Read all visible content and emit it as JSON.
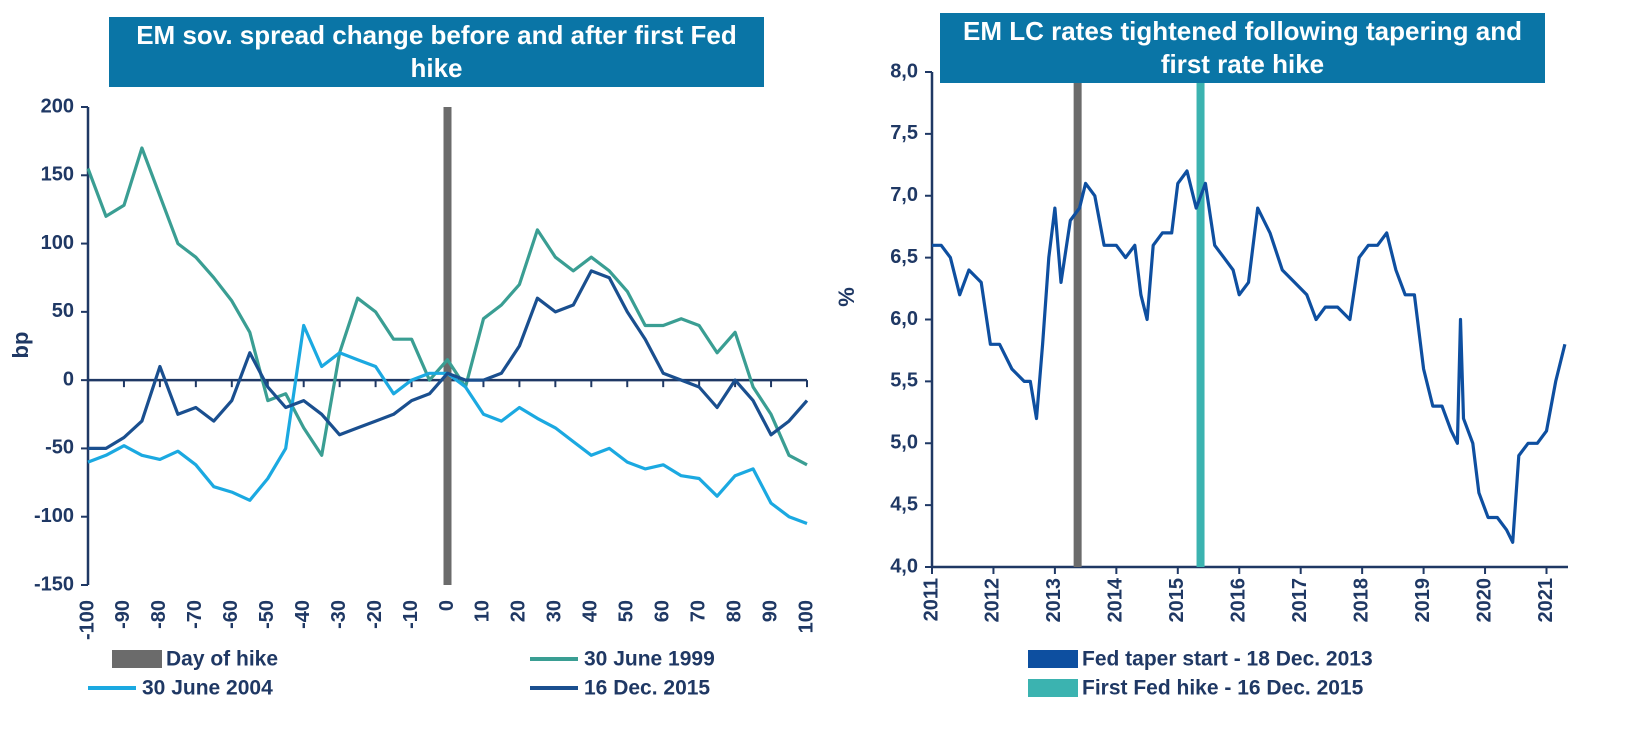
{
  "chart_data": [
    {
      "type": "line",
      "title": "EM sov. spread change before and after first Fed hike",
      "ylabel": "bp",
      "x": [
        -100,
        -95,
        -90,
        -85,
        -80,
        -75,
        -70,
        -65,
        -60,
        -55,
        -50,
        -45,
        -40,
        -35,
        -30,
        -25,
        -20,
        -15,
        -10,
        -5,
        0,
        5,
        10,
        15,
        20,
        25,
        30,
        35,
        40,
        45,
        50,
        55,
        60,
        65,
        70,
        75,
        80,
        85,
        90,
        95,
        100
      ],
      "xlim": [
        -100,
        100
      ],
      "xticks": [
        -100,
        -90,
        -80,
        -70,
        -60,
        -50,
        -40,
        -30,
        -20,
        -10,
        0,
        10,
        20,
        30,
        40,
        50,
        60,
        70,
        80,
        90,
        100
      ],
      "ylim": [
        -150,
        200
      ],
      "yticks": [
        -150,
        -100,
        -50,
        0,
        50,
        100,
        150,
        200
      ],
      "markers": [
        {
          "name": "Day of hike",
          "x": 0,
          "color": "#6b6b6b"
        }
      ],
      "series": [
        {
          "name": "30 June 1999",
          "color": "#3a9e93",
          "values": [
            155,
            120,
            128,
            170,
            135,
            100,
            90,
            75,
            58,
            35,
            -15,
            -10,
            -35,
            -55,
            20,
            60,
            50,
            30,
            30,
            0,
            15,
            -5,
            45,
            55,
            70,
            110,
            90,
            80,
            90,
            80,
            65,
            40,
            40,
            45,
            40,
            20,
            35,
            -5,
            -25,
            -55,
            -62
          ]
        },
        {
          "name": "30 June 2004",
          "color": "#1ba9e1",
          "values": [
            -60,
            -55,
            -48,
            -55,
            -58,
            -52,
            -62,
            -78,
            -82,
            -88,
            -72,
            -50,
            40,
            10,
            20,
            15,
            10,
            -10,
            0,
            5,
            5,
            -5,
            -25,
            -30,
            -20,
            -28,
            -35,
            -45,
            -55,
            -50,
            -60,
            -65,
            -62,
            -70,
            -72,
            -85,
            -70,
            -65,
            -90,
            -100,
            -105
          ]
        },
        {
          "name": "16 Dec. 2015",
          "color": "#1a4f8f",
          "values": [
            -50,
            -50,
            -42,
            -30,
            10,
            -25,
            -20,
            -30,
            -15,
            20,
            -5,
            -20,
            -15,
            -25,
            -40,
            -35,
            -30,
            -25,
            -15,
            -10,
            5,
            0,
            0,
            5,
            25,
            60,
            50,
            55,
            80,
            75,
            50,
            30,
            5,
            0,
            -5,
            -20,
            0,
            -15,
            -40,
            -30,
            -15
          ]
        }
      ]
    },
    {
      "type": "line",
      "title": "EM LC rates tightened following tapering and first rate hike",
      "ylabel": "%",
      "x": [
        2011.0,
        2011.15,
        2011.3,
        2011.45,
        2011.6,
        2011.8,
        2011.95,
        2012.1,
        2012.3,
        2012.5,
        2012.6,
        2012.7,
        2012.8,
        2012.9,
        2013.0,
        2013.1,
        2013.25,
        2013.4,
        2013.5,
        2013.65,
        2013.8,
        2014.0,
        2014.15,
        2014.3,
        2014.4,
        2014.5,
        2014.6,
        2014.75,
        2014.9,
        2015.0,
        2015.15,
        2015.3,
        2015.45,
        2015.6,
        2015.75,
        2015.9,
        2016.0,
        2016.15,
        2016.3,
        2016.5,
        2016.7,
        2016.9,
        2017.1,
        2017.25,
        2017.4,
        2017.6,
        2017.8,
        2017.95,
        2018.1,
        2018.25,
        2018.4,
        2018.55,
        2018.7,
        2018.85,
        2019.0,
        2019.15,
        2019.3,
        2019.45,
        2019.55,
        2019.6,
        2019.65,
        2019.8,
        2019.9,
        2020.05,
        2020.2,
        2020.35,
        2020.45,
        2020.55,
        2020.7,
        2020.85,
        2021.0,
        2021.15,
        2021.3
      ],
      "xlim": [
        2011,
        2021.35
      ],
      "xticks": [
        2011,
        2012,
        2013,
        2014,
        2015,
        2016,
        2017,
        2018,
        2019,
        2020,
        2021
      ],
      "ylim": [
        4,
        8
      ],
      "yticks": [
        {
          "value": 4,
          "label": "4,0"
        },
        {
          "value": 4.5,
          "label": "4,5"
        },
        {
          "value": 5,
          "label": "5,0"
        },
        {
          "value": 5.5,
          "label": "5,5"
        },
        {
          "value": 6,
          "label": "6,0"
        },
        {
          "value": 6.5,
          "label": "6,5"
        },
        {
          "value": 7,
          "label": "7,0"
        },
        {
          "value": 7.5,
          "label": "7,5"
        },
        {
          "value": 8,
          "label": "8,0"
        }
      ],
      "markers": [
        {
          "name": "Fed taper start - 18 Dec. 2013",
          "x": 2013.37,
          "color": "#6b6b6b",
          "legend_color": "#0d4fa0"
        },
        {
          "name": "First Fed hike - 16 Dec. 2015",
          "x": 2015.37,
          "color": "#3bb3b0",
          "legend_color": "#3bb3b0"
        }
      ],
      "series": [
        {
          "color": "#0e4fa0",
          "values": [
            6.6,
            6.6,
            6.5,
            6.2,
            6.4,
            6.3,
            5.8,
            5.8,
            5.6,
            5.5,
            5.5,
            5.2,
            5.8,
            6.5,
            6.9,
            6.3,
            6.8,
            6.9,
            7.1,
            7.0,
            6.6,
            6.6,
            6.5,
            6.6,
            6.2,
            6.0,
            6.6,
            6.7,
            6.7,
            7.1,
            7.2,
            6.9,
            7.1,
            6.6,
            6.5,
            6.4,
            6.2,
            6.3,
            6.9,
            6.7,
            6.4,
            6.3,
            6.2,
            6.0,
            6.1,
            6.1,
            6.0,
            6.5,
            6.6,
            6.6,
            6.7,
            6.4,
            6.2,
            6.2,
            5.6,
            5.3,
            5.3,
            5.1,
            5.0,
            6.0,
            5.2,
            5.0,
            4.6,
            4.4,
            4.4,
            4.3,
            4.2,
            4.9,
            5.0,
            5.0,
            5.1,
            5.5,
            5.8
          ]
        }
      ]
    }
  ]
}
